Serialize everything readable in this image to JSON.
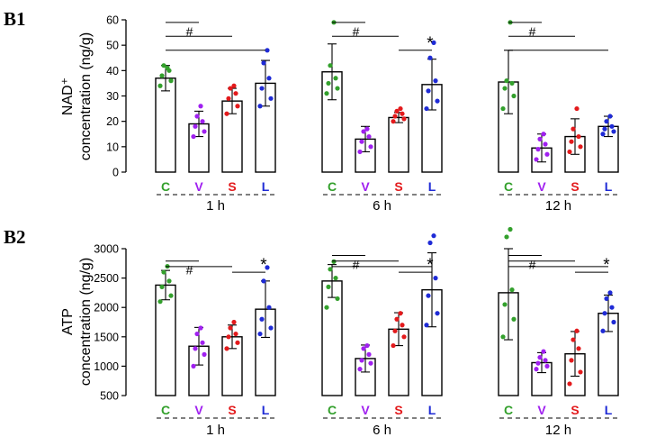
{
  "colors": {
    "C": "#33a02c",
    "V": "#a020f0",
    "S": "#e31a1c",
    "L": "#1f2bd6"
  },
  "chart_data": [
    {
      "type": "bar",
      "panel": "B1",
      "ylabel_lines": [
        "NAD⁺",
        "concentration (ng/g)"
      ],
      "ylim": [
        0,
        60
      ],
      "yticks": [
        "0",
        "10",
        "20",
        "30",
        "40",
        "50",
        "60"
      ],
      "yticks_num": [
        0,
        10,
        20,
        30,
        40,
        50,
        60
      ],
      "categories": [
        "C",
        "V",
        "S",
        "L"
      ],
      "groups": [
        {
          "time": "1 h",
          "means": [
            37,
            19,
            28,
            35
          ],
          "errors": [
            5,
            5,
            5,
            9
          ],
          "points": [
            [
              34,
              36,
              38,
              40,
              42,
              41
            ],
            [
              14,
              16,
              18,
              20,
              22,
              26
            ],
            [
              23,
              26,
              29,
              31,
              33,
              34
            ],
            [
              26,
              29,
              33,
              37,
              43,
              48
            ]
          ],
          "brackets": [
            {
              "from": 0,
              "to": 1,
              "label": "#"
            },
            {
              "from": 0,
              "to": 2,
              "label": ""
            },
            {
              "from": 0,
              "to": 3,
              "label": ""
            }
          ]
        },
        {
          "time": "6 h",
          "means": [
            39.5,
            13,
            21.5,
            34.5
          ],
          "errors": [
            11,
            5,
            2,
            10
          ],
          "points": [
            [
              31,
              33,
              35,
              37,
              42,
              59
            ],
            [
              8,
              10,
              12,
              14,
              16,
              17
            ],
            [
              20,
              21,
              22,
              23,
              24,
              25
            ],
            [
              25,
              28,
              32,
              36,
              45,
              51
            ]
          ],
          "brackets": [
            {
              "from": 0,
              "to": 1,
              "label": "#"
            },
            {
              "from": 0,
              "to": 2,
              "label": ""
            },
            {
              "from": 2,
              "to": 3,
              "label": "*"
            }
          ]
        },
        {
          "time": "12 h",
          "means": [
            35.5,
            9.5,
            14,
            18
          ],
          "errors": [
            12.5,
            5.5,
            7,
            4
          ],
          "points": [
            [
              25,
              30,
              33,
              35,
              36,
              59
            ],
            [
              5,
              7,
              9,
              11,
              13,
              15
            ],
            [
              8,
              10,
              12,
              14,
              17,
              25
            ],
            [
              15,
              16,
              17,
              18,
              20,
              22
            ]
          ],
          "brackets": [
            {
              "from": 0,
              "to": 1,
              "label": "#"
            },
            {
              "from": 0,
              "to": 2,
              "label": ""
            },
            {
              "from": 0,
              "to": 3,
              "label": ""
            }
          ]
        }
      ]
    },
    {
      "type": "bar",
      "panel": "B2",
      "ylabel_lines": [
        "ATP",
        "concentration (ng/g)"
      ],
      "ylim": [
        500,
        3000
      ],
      "yticks": [
        "500",
        "1000",
        "1500",
        "2000",
        "2500",
        "3000"
      ],
      "yticks_num": [
        500,
        1000,
        1500,
        2000,
        2500,
        3000
      ],
      "categories": [
        "C",
        "V",
        "S",
        "L"
      ],
      "groups": [
        {
          "time": "1 h",
          "means": [
            2380,
            1340,
            1500,
            1970
          ],
          "errors": [
            250,
            320,
            200,
            480
          ],
          "points": [
            [
              2100,
              2200,
              2350,
              2450,
              2600,
              2700
            ],
            [
              1000,
              1200,
              1300,
              1400,
              1550,
              1650
            ],
            [
              1300,
              1400,
              1500,
              1550,
              1650,
              1750
            ],
            [
              1550,
              1650,
              1800,
              2000,
              2450,
              2680
            ]
          ],
          "brackets": [
            {
              "from": 0,
              "to": 1,
              "label": "#"
            },
            {
              "from": 0,
              "to": 2,
              "label": ""
            },
            {
              "from": 2,
              "to": 3,
              "label": "*"
            }
          ]
        },
        {
          "time": "6 h",
          "means": [
            2450,
            1130,
            1630,
            2300
          ],
          "errors": [
            280,
            230,
            280,
            630
          ],
          "points": [
            [
              2000,
              2150,
              2350,
              2500,
              2650,
              2780
            ],
            [
              950,
              1050,
              1100,
              1200,
              1300,
              1350
            ],
            [
              1350,
              1500,
              1600,
              1700,
              1800,
              1900
            ],
            [
              1700,
              1900,
              2200,
              2500,
              3100,
              3220
            ]
          ],
          "brackets": [
            {
              "from": 0,
              "to": 1,
              "label": "#"
            },
            {
              "from": 0,
              "to": 2,
              "label": ""
            },
            {
              "from": 0,
              "to": 3,
              "label": ""
            },
            {
              "from": 2,
              "to": 3,
              "label": "*"
            }
          ]
        },
        {
          "time": "12 h",
          "means": [
            2250,
            1060,
            1210,
            1900
          ],
          "errors": [
            800,
            170,
            380,
            310
          ],
          "points": [
            [
              1500,
              1800,
              2050,
              2300,
              3200,
              3330
            ],
            [
              950,
              1000,
              1050,
              1100,
              1150,
              1250
            ],
            [
              700,
              900,
              1100,
              1300,
              1450,
              1600
            ],
            [
              1600,
              1750,
              1900,
              2000,
              2150,
              2250
            ]
          ],
          "brackets": [
            {
              "from": 0,
              "to": 1,
              "label": "#"
            },
            {
              "from": 0,
              "to": 2,
              "label": ""
            },
            {
              "from": 0,
              "to": 3,
              "label": ""
            },
            {
              "from": 2,
              "to": 3,
              "label": "*"
            }
          ]
        }
      ]
    }
  ]
}
